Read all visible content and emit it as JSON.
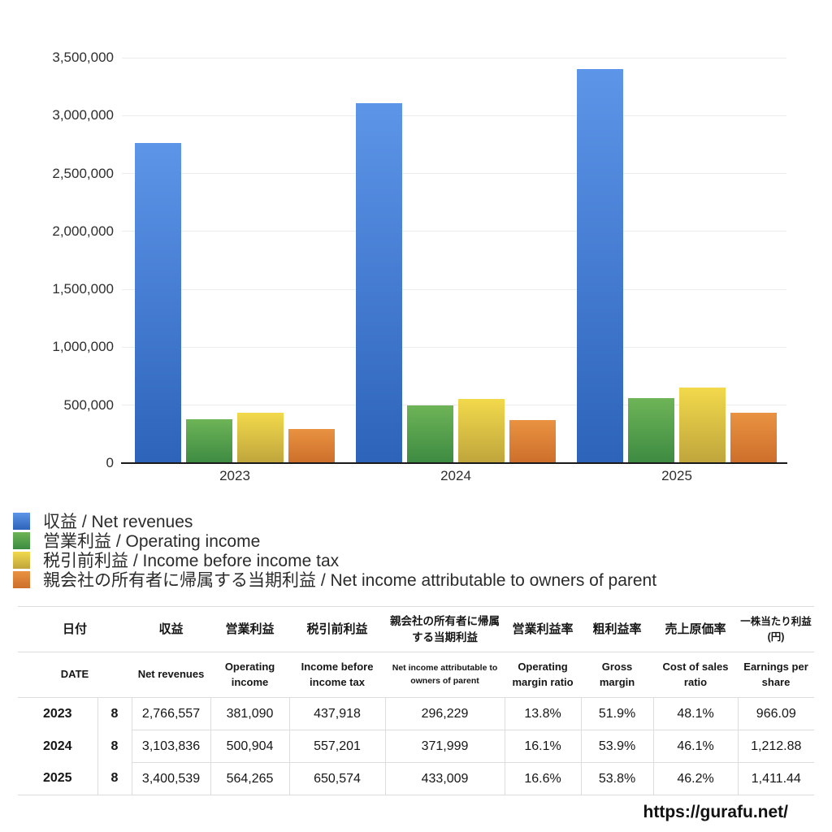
{
  "chart_data": {
    "type": "bar",
    "title": "",
    "categories": [
      "2023",
      "2024",
      "2025"
    ],
    "series": [
      {
        "name": "収益 / Net revenues",
        "values": [
          2766557,
          3103836,
          3400539
        ],
        "color_top": "#5d95e9",
        "color_bottom": "#2d64ba"
      },
      {
        "name": "営業利益 / Operating income",
        "values": [
          381090,
          500904,
          564265
        ],
        "color_top": "#6eb457",
        "color_bottom": "#3d8b42"
      },
      {
        "name": "税引前利益 / Income before income tax",
        "values": [
          437918,
          557201,
          650574
        ],
        "color_top": "#f2d94b",
        "color_bottom": "#bfa53c"
      },
      {
        "name": "親会社の所有者に帰属する当期利益 / Net income attributable to owners of parent",
        "values": [
          296229,
          371999,
          433009
        ],
        "color_top": "#e99241",
        "color_bottom": "#cd6f2b"
      }
    ],
    "xlabel": "",
    "ylabel": "",
    "ylim": [
      0,
      3500000
    ],
    "y_tick_step": 500000,
    "y_tick_labels": [
      "3,500,000",
      "3,000,000",
      "2,500,000",
      "2,000,000",
      "1,500,000",
      "1,000,000",
      "500,000",
      "0"
    ],
    "grid": true,
    "legend_position": "bottom-left"
  },
  "table": {
    "header_jp": [
      "日付",
      "収益",
      "営業利益",
      "税引前利益",
      "親会社の所有者に帰属する当期利益",
      "営業利益率",
      "粗利益率",
      "売上原価率",
      "一株当たり利益(円)"
    ],
    "header_en": [
      "DATE",
      "Net revenues",
      "Operating income",
      "Income before income tax",
      "Net income attributable to owners of parent",
      "Operating margin ratio",
      "Gross margin",
      "Cost of sales ratio",
      "Earnings per share"
    ],
    "rows": [
      {
        "year": "2023",
        "month": "8",
        "values": [
          "2,766,557",
          "381,090",
          "437,918",
          "296,229",
          "13.8%",
          "51.9%",
          "48.1%",
          "966.09"
        ]
      },
      {
        "year": "2024",
        "month": "8",
        "values": [
          "3,103,836",
          "500,904",
          "557,201",
          "371,999",
          "16.1%",
          "53.9%",
          "46.1%",
          "1,212.88"
        ]
      },
      {
        "year": "2025",
        "month": "8",
        "values": [
          "3,400,539",
          "564,265",
          "650,574",
          "433,009",
          "16.6%",
          "53.8%",
          "46.2%",
          "1,411.44"
        ]
      }
    ]
  },
  "footer": {
    "url": "https://gurafu.net/"
  }
}
